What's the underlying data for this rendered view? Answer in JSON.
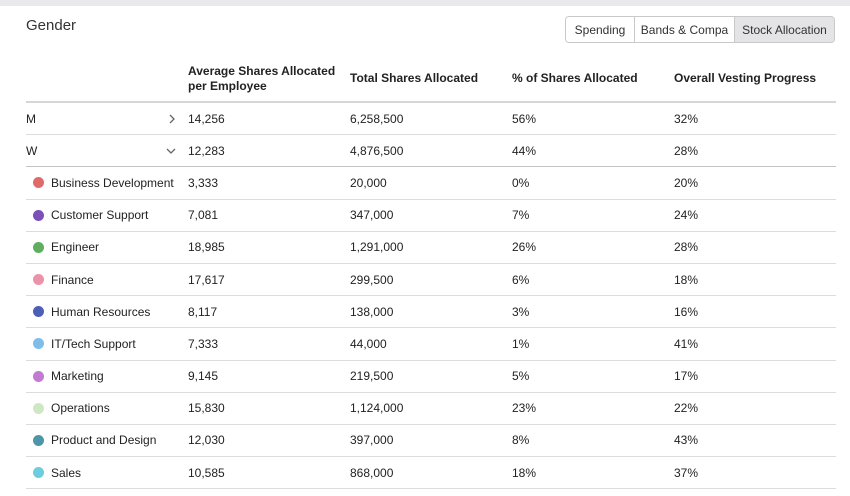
{
  "title": "Gender",
  "tabs": [
    "Spending",
    "Bands & Compa",
    "Stock Allocation"
  ],
  "active_tab": "Stock Allocation",
  "columns": {
    "group": "",
    "avg_shares": "Average Shares Allocated per Employee",
    "total_shares": "Total Shares Allocated",
    "pct_shares": "% of Shares Allocated",
    "vesting": "Overall Vesting Progress"
  },
  "groups": [
    {
      "label": "M",
      "avg": "14,256",
      "total": "6,258,500",
      "pct": "56%",
      "vesting": "32%",
      "expanded": false
    },
    {
      "label": "W",
      "avg": "12,283",
      "total": "4,876,500",
      "pct": "44%",
      "vesting": "28%",
      "expanded": true
    }
  ],
  "departments": [
    {
      "label": "Business Development",
      "color": "#e06a6a",
      "avg": "3,333",
      "total": "20,000",
      "pct": "0%",
      "vesting": "20%"
    },
    {
      "label": "Customer Support",
      "color": "#7b50b8",
      "avg": "7,081",
      "total": "347,000",
      "pct": "7%",
      "vesting": "24%"
    },
    {
      "label": "Engineer",
      "color": "#5fae5f",
      "avg": "18,985",
      "total": "1,291,000",
      "pct": "26%",
      "vesting": "28%"
    },
    {
      "label": "Finance",
      "color": "#ec93ac",
      "avg": "17,617",
      "total": "299,500",
      "pct": "6%",
      "vesting": "18%"
    },
    {
      "label": "Human Resources",
      "color": "#4c5fb7",
      "avg": "8,117",
      "total": "138,000",
      "pct": "3%",
      "vesting": "16%"
    },
    {
      "label": "IT/Tech Support",
      "color": "#7fbdea",
      "avg": "7,333",
      "total": "44,000",
      "pct": "1%",
      "vesting": "41%"
    },
    {
      "label": "Marketing",
      "color": "#c27ad3",
      "avg": "9,145",
      "total": "219,500",
      "pct": "5%",
      "vesting": "17%"
    },
    {
      "label": "Operations",
      "color": "#cfe8c2",
      "avg": "15,830",
      "total": "1,124,000",
      "pct": "23%",
      "vesting": "22%"
    },
    {
      "label": "Product and Design",
      "color": "#4c96a8",
      "avg": "12,030",
      "total": "397,000",
      "pct": "8%",
      "vesting": "43%"
    },
    {
      "label": "Sales",
      "color": "#6ccde0",
      "avg": "10,585",
      "total": "868,000",
      "pct": "18%",
      "vesting": "37%"
    }
  ]
}
